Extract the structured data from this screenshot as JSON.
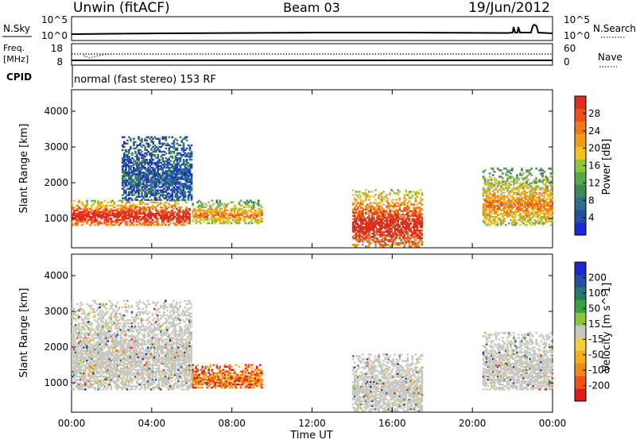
{
  "header": {
    "site": "Unwin (fitACF)",
    "beam": "Beam 03",
    "date": "19/Jun/2012"
  },
  "top_panels": {
    "nsky_label": "N.Sky",
    "nsky_ticks": [
      "10^5",
      "10^0"
    ],
    "nsearch_label": "N.Search",
    "nsearch_ticks": [
      "10^5",
      "10^0"
    ],
    "freq_label_1": "Freq.",
    "freq_label_2": "[MHz]",
    "freq_ticks": [
      "18",
      "8"
    ],
    "nave_label": "Nave",
    "nave_ticks": [
      "60",
      "0"
    ],
    "cpid_label": "CPID",
    "cpid_text": "normal (fast stereo) 153 RF"
  },
  "colors": {
    "power": [
      "#1c28d8",
      "#244ea0",
      "#2c6e8c",
      "#3a8a5a",
      "#55a84c",
      "#8cc63c",
      "#f2c21a",
      "#f29a1a",
      "#f0781c",
      "#ec4e1c",
      "#e02c1c"
    ],
    "velocity": [
      "#e01a1a",
      "#f0501a",
      "#f28a1a",
      "#f2b01e",
      "#f0d040",
      "#c8c8c0",
      "#8cc63c",
      "#3aa03a",
      "#2a7a6a",
      "#244ea0",
      "#1c28c8"
    ],
    "gray": "#c8c8c0"
  },
  "chart_data": [
    {
      "type": "heatmap",
      "title": "Power",
      "xlabel": "Time UT",
      "ylabel": "Slant Range [km]",
      "x_ticks": [
        "00:00",
        "04:00",
        "08:00",
        "12:00",
        "16:00",
        "20:00",
        "00:00"
      ],
      "y_ticks": [
        "1000",
        "2000",
        "3000",
        "4000"
      ],
      "colorbar_label": "Power [dB]",
      "colorbar_ticks": [
        "28",
        "24",
        "20",
        "16",
        "12",
        "8",
        "4"
      ],
      "xlim": [
        0,
        24
      ],
      "ylim": [
        180,
        4600
      ],
      "regions": [
        {
          "t": [
            0.0,
            5.9
          ],
          "r": [
            800,
            1500
          ],
          "level": "high"
        },
        {
          "t": [
            2.5,
            6.0
          ],
          "r": [
            1500,
            3300
          ],
          "level": "low"
        },
        {
          "t": [
            6.0,
            9.5
          ],
          "r": [
            850,
            1500
          ],
          "level": "mid"
        },
        {
          "t": [
            14.0,
            17.5
          ],
          "r": [
            200,
            1800
          ],
          "level": "high"
        },
        {
          "t": [
            20.5,
            24.0
          ],
          "r": [
            800,
            2400
          ],
          "level": "mid"
        }
      ]
    },
    {
      "type": "heatmap",
      "title": "Velocity",
      "xlabel": "Time UT",
      "ylabel": "Slant Range [km]",
      "x_ticks": [
        "00:00",
        "04:00",
        "08:00",
        "12:00",
        "16:00",
        "20:00",
        "00:00"
      ],
      "y_ticks": [
        "1000",
        "2000",
        "3000",
        "4000"
      ],
      "colorbar_label": "Velocity [m s^-1]",
      "colorbar_ticks": [
        "200",
        "100",
        "50",
        "15",
        "-15",
        "-50",
        "-100",
        "-200"
      ],
      "xlim": [
        0,
        24
      ],
      "ylim": [
        180,
        4600
      ],
      "regions": [
        {
          "t": [
            0.0,
            6.0
          ],
          "r": [
            800,
            3300
          ],
          "level": "ground"
        },
        {
          "t": [
            6.0,
            9.5
          ],
          "r": [
            850,
            1500
          ],
          "level": "negative"
        },
        {
          "t": [
            14.0,
            17.5
          ],
          "r": [
            200,
            1800
          ],
          "level": "ground"
        },
        {
          "t": [
            20.5,
            24.0
          ],
          "r": [
            800,
            2400
          ],
          "level": "ground"
        }
      ]
    }
  ]
}
